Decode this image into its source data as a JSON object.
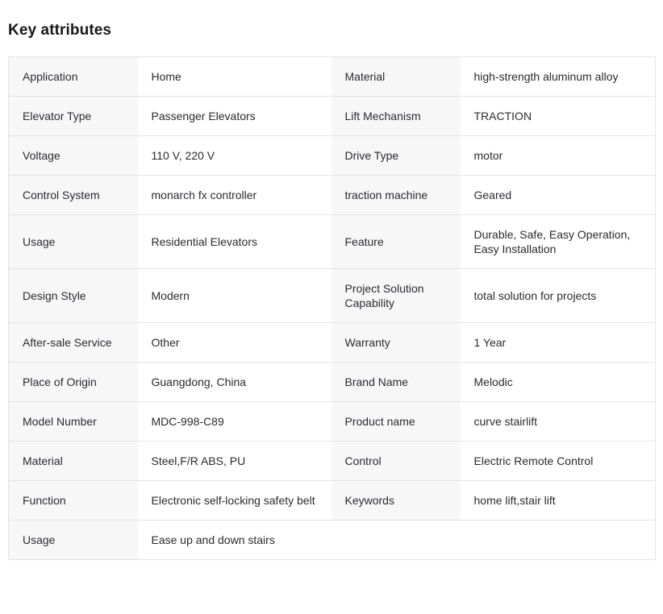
{
  "page_title": "Key attributes",
  "colors": {
    "label_cell_background": "#f7f7f8",
    "border": "#e4e4e6",
    "text": "#2b2b30",
    "title_text": "#18181b"
  },
  "table": {
    "rows": [
      {
        "c0": "Application",
        "c1": "Home",
        "c2": "Material",
        "c3": "high-strength aluminum alloy"
      },
      {
        "c0": "Elevator Type",
        "c1": "Passenger Elevators",
        "c2": "Lift Mechanism",
        "c3": "TRACTION"
      },
      {
        "c0": "Voltage",
        "c1": "110 V, 220 V",
        "c2": "Drive Type",
        "c3": "motor"
      },
      {
        "c0": "Control System",
        "c1": "monarch fx controller",
        "c2": "traction machine",
        "c3": "Geared"
      },
      {
        "c0": "Usage",
        "c1": "Residential Elevators",
        "c2": "Feature",
        "c3": "Durable, Safe, Easy Operation, Easy Installation"
      },
      {
        "c0": "Design Style",
        "c1": "Modern",
        "c2": "Project Solution Capability",
        "c3": "total solution for projects"
      },
      {
        "c0": "After-sale Service",
        "c1": "Other",
        "c2": "Warranty",
        "c3": "1 Year"
      },
      {
        "c0": "Place of Origin",
        "c1": "Guangdong, China",
        "c2": "Brand Name",
        "c3": "Melodic"
      },
      {
        "c0": "Model Number",
        "c1": "MDC-998-C89",
        "c2": "Product name",
        "c3": "curve stairlift"
      },
      {
        "c0": "Material",
        "c1": "Steel,F/R ABS, PU",
        "c2": "Control",
        "c3": "Electric Remote Control"
      },
      {
        "c0": "Function",
        "c1": "Electronic self-locking safety belt",
        "c2": "Keywords",
        "c3": "home lift,stair lift"
      },
      {
        "c0": "Usage",
        "c1": "Ease up and down stairs",
        "c2": "",
        "c3": ""
      }
    ]
  }
}
